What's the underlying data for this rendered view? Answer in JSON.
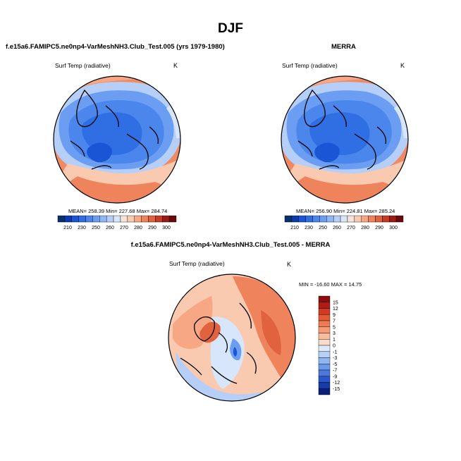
{
  "figure": {
    "title": "DJF"
  },
  "panels": [
    {
      "id": "model",
      "title": "f.e15a6.FAMIPC5.ne0np4-VarMeshNH3.Club_Test.005 (yrs 1979-1980)",
      "variable": "Surf Temp (radiative)",
      "units": "K",
      "stats": "MEAN= 258.39  Min= 227.68  Max= 284.74",
      "colorbar": {
        "tick_labels": [
          "210",
          "230",
          "250",
          "260",
          "270",
          "280",
          "290",
          "300"
        ],
        "colors": [
          "#08306b",
          "#0b3ab0",
          "#1a55d6",
          "#2f6fe3",
          "#4a86ec",
          "#6b9ef2",
          "#8fb6f6",
          "#b5cff9",
          "#d8e6fb",
          "#f7e4d9",
          "#f9c9b0",
          "#f7a783",
          "#ef845c",
          "#e0623e",
          "#c43c23",
          "#9a1c12",
          "#6b0a0a"
        ]
      }
    },
    {
      "id": "obs",
      "title": "MERRA",
      "variable": "Surf Temp (radiative)",
      "units": "K",
      "stats": "MEAN= 256.90  Min= 224.81  Max= 285.24",
      "colorbar": {
        "tick_labels": [
          "210",
          "230",
          "250",
          "260",
          "270",
          "280",
          "290",
          "300"
        ],
        "colors": [
          "#08306b",
          "#0b3ab0",
          "#1a55d6",
          "#2f6fe3",
          "#4a86ec",
          "#6b9ef2",
          "#8fb6f6",
          "#b5cff9",
          "#d8e6fb",
          "#f7e4d9",
          "#f9c9b0",
          "#f7a783",
          "#ef845c",
          "#e0623e",
          "#c43c23",
          "#9a1c12",
          "#6b0a0a"
        ]
      }
    },
    {
      "id": "diff",
      "title": "f.e15a6.FAMIPC5.ne0np4-VarMeshNH3.Club_Test.005 - MERRA",
      "variable": "Surf Temp (radiative)",
      "units": "K",
      "stats": "MIN = -16.60 MAX =  14.75",
      "colorbar": {
        "tick_labels": [
          "15",
          "12",
          "9",
          "7",
          "5",
          "3",
          "1",
          "0",
          "-1",
          "-3",
          "-5",
          "-7",
          "-9",
          "-12",
          "-15"
        ],
        "colors": [
          "#8c0d0d",
          "#b01c12",
          "#cf3a22",
          "#e45a37",
          "#f07a52",
          "#f69b77",
          "#f9bd9e",
          "#fbdcc8",
          "#dce9fb",
          "#b7d0f7",
          "#90b6f1",
          "#6b98e8",
          "#4a78dc",
          "#2b56c7",
          "#163aa8",
          "#0a1f7a"
        ]
      }
    }
  ]
}
